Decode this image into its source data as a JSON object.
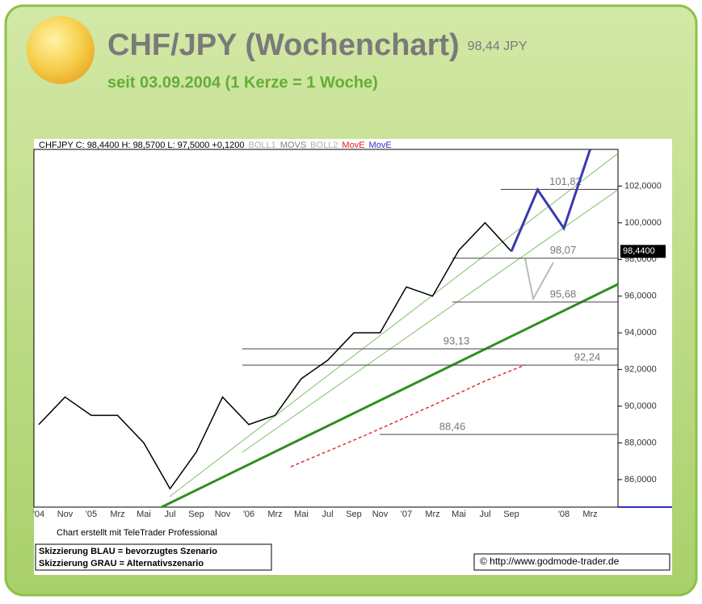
{
  "chart_data": {
    "type": "line",
    "title": "CHF/JPY (Wochenchart)",
    "price": "98,44 JPY",
    "subtitle": "seit 03.09.2004 (1 Kerze = 1 Woche)",
    "header_items": [
      {
        "text": "CHFJPY C: 98,4400 H: 98,5700 L: 97,5000 +0,1200",
        "color": "#000000"
      },
      {
        "text": "BOLL1",
        "color": "#b0b0b0"
      },
      {
        "text": "MOVS",
        "color": "#808080"
      },
      {
        "text": "BOLL2",
        "color": "#b0b0b0"
      },
      {
        "text": "MovE",
        "color": "#e02020"
      },
      {
        "text": "MovE",
        "color": "#3030c0"
      }
    ],
    "categories": [
      "'04",
      "Nov",
      "'05",
      "Mrz",
      "Mai",
      "Jul",
      "Sep",
      "Nov",
      "'06",
      "Mrz",
      "Mai",
      "Jul",
      "Sep",
      "Nov",
      "'07",
      "Mrz",
      "Mai",
      "Jul",
      "Sep",
      null,
      "'08",
      "Mrz"
    ],
    "series": [
      {
        "name": "CHFJPY",
        "color": "#000000",
        "values": [
          89,
          90.5,
          89.5,
          89.5,
          88,
          85.5,
          87.5,
          90.5,
          89,
          89.5,
          91.5,
          92.5,
          94,
          94,
          96.5,
          96,
          98.5,
          100,
          98.44,
          null,
          null,
          null
        ]
      },
      {
        "name": "MovE",
        "color": "#3a3ab0",
        "values": [
          null,
          null,
          null,
          null,
          null,
          null,
          null,
          null,
          null,
          null,
          null,
          null,
          null,
          null,
          null,
          null,
          null,
          null,
          98.44,
          101.8,
          99.7,
          104
        ]
      }
    ],
    "ylim": [
      84.5,
      104
    ],
    "yticks": [
      {
        "value": 86,
        "label": "86,0000"
      },
      {
        "value": 88,
        "label": "88,0000"
      },
      {
        "value": 90,
        "label": "90,0000"
      },
      {
        "value": 92,
        "label": "92,0000"
      },
      {
        "value": 94,
        "label": "94,0000"
      },
      {
        "value": 96,
        "label": "96,0000"
      },
      {
        "value": 98,
        "label": "98,0000"
      },
      {
        "value": 100,
        "label": "100,0000"
      },
      {
        "value": 102,
        "label": "102,0000"
      }
    ],
    "price_tag": {
      "value": 98.44,
      "label": "98,4400"
    },
    "levels": [
      {
        "value": 101.82,
        "label": "101,82"
      },
      {
        "value": 98.07,
        "label": "98,07"
      },
      {
        "value": 95.68,
        "label": "95,68"
      },
      {
        "value": 93.13,
        "label": "93,13"
      },
      {
        "value": 92.24,
        "label": "92,24"
      },
      {
        "value": 88.46,
        "label": "88,46"
      }
    ],
    "credit": "Chart erstellt mit TeleTrader Professional",
    "notes": [
      "Skizzierung BLAU = bevorzugtes Szenario",
      "Skizzierung GRAU = Alternativszenario"
    ],
    "source": "© http://www.godmode-trader.de"
  }
}
